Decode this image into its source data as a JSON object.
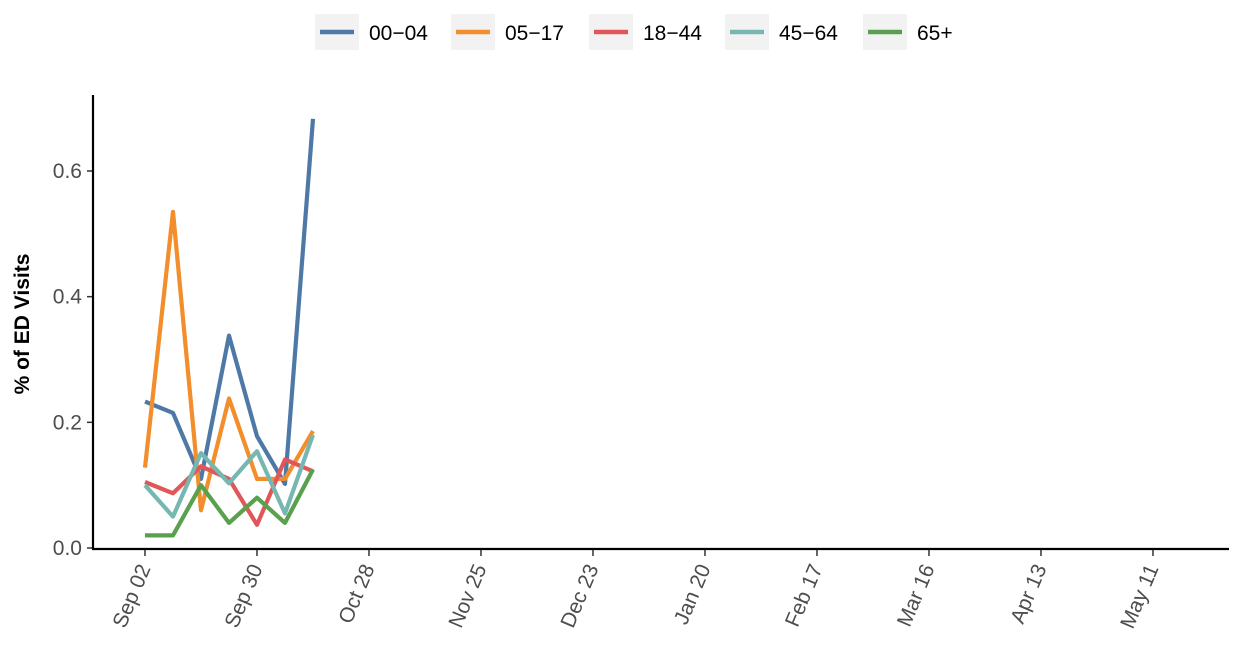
{
  "chart_data": {
    "type": "line",
    "title": "",
    "xlabel": "",
    "ylabel": "% of ED Visits",
    "ylim": [
      0,
      0.7
    ],
    "y_ticks": [
      0.0,
      0.2,
      0.4,
      0.6
    ],
    "y_tick_labels": [
      "0.0",
      "0.2",
      "0.4",
      "0.6"
    ],
    "x_domain": [
      "2023-08-26",
      "2024-06-01"
    ],
    "x_ticks": [
      "2023-09-02",
      "2023-09-30",
      "2023-10-28",
      "2023-11-25",
      "2023-12-23",
      "2024-01-20",
      "2024-02-17",
      "2024-03-16",
      "2024-04-13",
      "2024-05-11"
    ],
    "x_tick_labels": [
      "Sep 02",
      "Sep 30",
      "Oct 28",
      "Nov 25",
      "Dec 23",
      "Jan 20",
      "Feb 17",
      "Mar 16",
      "Apr 13",
      "May 11"
    ],
    "x": [
      "2023-09-02",
      "2023-09-09",
      "2023-09-16",
      "2023-09-23",
      "2023-09-30",
      "2023-10-07",
      "2023-10-14"
    ],
    "series": [
      {
        "name": "00−04",
        "color": "#4e79a7",
        "values": [
          0.233,
          0.215,
          0.11,
          0.338,
          0.178,
          0.102,
          0.683
        ]
      },
      {
        "name": "05−17",
        "color": "#f28e2b",
        "values": [
          0.128,
          0.535,
          0.06,
          0.238,
          0.11,
          0.11,
          0.186
        ]
      },
      {
        "name": "18−44",
        "color": "#e15759",
        "values": [
          0.105,
          0.087,
          0.13,
          0.11,
          0.037,
          0.141,
          0.122
        ]
      },
      {
        "name": "45−64",
        "color": "#76b7b2",
        "values": [
          0.1,
          0.05,
          0.151,
          0.103,
          0.154,
          0.055,
          0.18
        ]
      },
      {
        "name": "65+",
        "color": "#59a14f",
        "values": [
          0.02,
          0.02,
          0.1,
          0.04,
          0.08,
          0.04,
          0.125
        ]
      }
    ],
    "legend_position": "top",
    "grid": false
  }
}
